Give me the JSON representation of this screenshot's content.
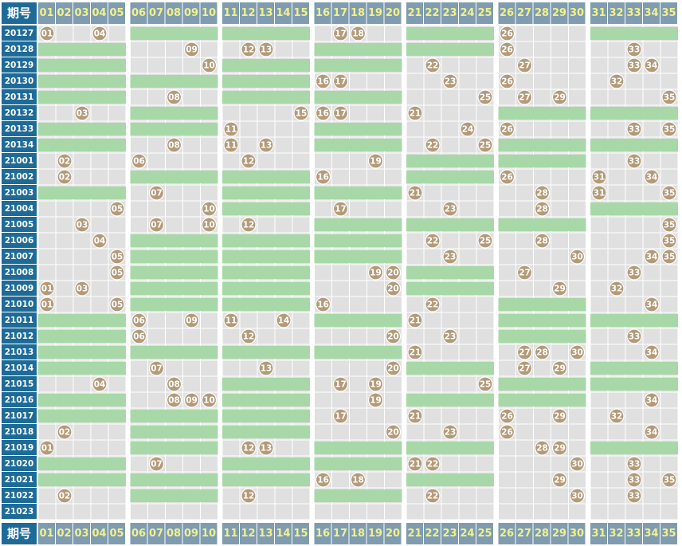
{
  "title": "",
  "header_label": "期号",
  "columns": [
    "01",
    "02",
    "03",
    "04",
    "05",
    "06",
    "07",
    "08",
    "09",
    "10",
    "11",
    "12",
    "13",
    "14",
    "15",
    "16",
    "17",
    "18",
    "19",
    "20",
    "21",
    "22",
    "23",
    "24",
    "25",
    "26",
    "27",
    "28",
    "29",
    "30",
    "31",
    "32",
    "33",
    "34",
    "35"
  ],
  "colors": {
    "header_bg": "#7f9cb0",
    "header_text": "#f2f28a",
    "period_bg": "#1e6b98",
    "cell_bg": "#e0e0e0",
    "empty_zone": "#a8d8a8",
    "ball": "#b39b7a"
  },
  "chart_data": {
    "type": "table",
    "description_note": "",
    "zones": [
      [
        1,
        5
      ],
      [
        6,
        10
      ],
      [
        11,
        15
      ],
      [
        16,
        20
      ],
      [
        21,
        25
      ],
      [
        26,
        30
      ],
      [
        31,
        35
      ]
    ],
    "rows": [
      {
        "period": "20127",
        "numbers": [
          "01",
          "04",
          "17",
          "18",
          "26"
        ]
      },
      {
        "period": "20128",
        "numbers": [
          "09",
          "12",
          "13",
          "26",
          "33"
        ]
      },
      {
        "period": "20129",
        "numbers": [
          "10",
          "22",
          "27",
          "33",
          "34"
        ]
      },
      {
        "period": "20130",
        "numbers": [
          "16",
          "17",
          "23",
          "26",
          "32"
        ]
      },
      {
        "period": "20131",
        "numbers": [
          "08",
          "25",
          "27",
          "29",
          "35"
        ]
      },
      {
        "period": "20132",
        "numbers": [
          "03",
          "15",
          "16",
          "17",
          "21"
        ]
      },
      {
        "period": "20133",
        "numbers": [
          "11",
          "24",
          "26",
          "33",
          "35"
        ]
      },
      {
        "period": "20134",
        "numbers": [
          "08",
          "11",
          "13",
          "22",
          "25"
        ]
      },
      {
        "period": "21001",
        "numbers": [
          "02",
          "06",
          "12",
          "19",
          "33"
        ]
      },
      {
        "period": "21002",
        "numbers": [
          "02",
          "16",
          "26",
          "31",
          "34"
        ]
      },
      {
        "period": "21003",
        "numbers": [
          "07",
          "21",
          "28",
          "31",
          "35"
        ]
      },
      {
        "period": "21004",
        "numbers": [
          "05",
          "10",
          "17",
          "23",
          "28"
        ]
      },
      {
        "period": "21005",
        "numbers": [
          "03",
          "07",
          "10",
          "12",
          "35"
        ]
      },
      {
        "period": "21006",
        "numbers": [
          "04",
          "22",
          "25",
          "28",
          "35"
        ]
      },
      {
        "period": "21007",
        "numbers": [
          "05",
          "23",
          "30",
          "34",
          "35"
        ]
      },
      {
        "period": "21008",
        "numbers": [
          "05",
          "19",
          "20",
          "27",
          "33"
        ]
      },
      {
        "period": "21009",
        "numbers": [
          "01",
          "03",
          "20",
          "29",
          "32"
        ]
      },
      {
        "period": "21010",
        "numbers": [
          "01",
          "05",
          "16",
          "22",
          "34"
        ]
      },
      {
        "period": "21011",
        "numbers": [
          "06",
          "09",
          "11",
          "14",
          "21"
        ]
      },
      {
        "period": "21012",
        "numbers": [
          "06",
          "12",
          "20",
          "23",
          "33"
        ]
      },
      {
        "period": "21013",
        "numbers": [
          "21",
          "27",
          "28",
          "30",
          "34"
        ]
      },
      {
        "period": "21014",
        "numbers": [
          "07",
          "13",
          "20",
          "27",
          "29"
        ]
      },
      {
        "period": "21015",
        "numbers": [
          "04",
          "08",
          "17",
          "19",
          "25"
        ]
      },
      {
        "period": "21016",
        "numbers": [
          "08",
          "09",
          "10",
          "19",
          "34"
        ]
      },
      {
        "period": "21017",
        "numbers": [
          "17",
          "21",
          "26",
          "29",
          "32"
        ]
      },
      {
        "period": "21018",
        "numbers": [
          "02",
          "20",
          "23",
          "26",
          "34"
        ]
      },
      {
        "period": "21019",
        "numbers": [
          "01",
          "12",
          "13",
          "28",
          "29"
        ]
      },
      {
        "period": "21020",
        "numbers": [
          "07",
          "21",
          "22",
          "30",
          "33"
        ]
      },
      {
        "period": "21021",
        "numbers": [
          "16",
          "18",
          "29",
          "33",
          "35"
        ]
      },
      {
        "period": "21022",
        "numbers": [
          "02",
          "12",
          "22",
          "30",
          "33"
        ]
      },
      {
        "period": "21023",
        "numbers": []
      }
    ]
  }
}
